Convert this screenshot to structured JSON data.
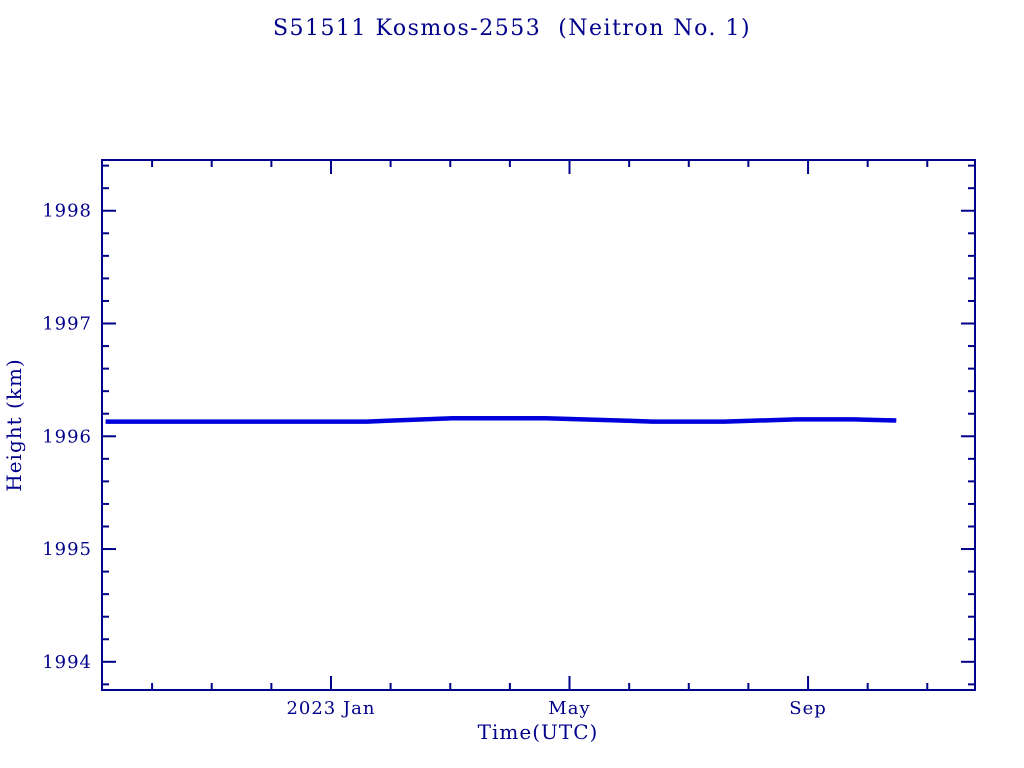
{
  "page": {
    "background": "#ffffff"
  },
  "colors": {
    "axis": "#00008b",
    "series": "#0000dd"
  },
  "chart_data": {
    "type": "line",
    "title": "S51511 Kosmos-2553  (Neitron No. 1)",
    "xlabel": "Time(UTC)",
    "ylabel": "Height (km)",
    "axis_color": "#00008b",
    "grid": false,
    "legend": false,
    "xlim": [
      2022.68,
      2023.9
    ],
    "ylim": [
      1993.75,
      1998.45
    ],
    "x_major_ticks": [
      {
        "x": 2023.0,
        "label": "2023 Jan"
      },
      {
        "x": 2023.3333,
        "label": "May"
      },
      {
        "x": 2023.6667,
        "label": "Sep"
      }
    ],
    "x_minor_ticks": [
      2022.75,
      2022.8333,
      2022.9167,
      2023.0833,
      2023.1667,
      2023.25,
      2023.4167,
      2023.5,
      2023.5833,
      2023.75,
      2023.8333
    ],
    "y_major_ticks": [
      {
        "y": 1994,
        "label": "1994"
      },
      {
        "y": 1995,
        "label": "1995"
      },
      {
        "y": 1996,
        "label": "1996"
      },
      {
        "y": 1997,
        "label": "1997"
      },
      {
        "y": 1998,
        "label": "1998"
      }
    ],
    "y_minor_step": 0.2,
    "series": [
      {
        "name": "orbit-height",
        "color": "#0000dd",
        "width": 4.5,
        "points": [
          [
            2022.685,
            1996.13
          ],
          [
            2022.9,
            1996.13
          ],
          [
            2023.05,
            1996.13
          ],
          [
            2023.17,
            1996.16
          ],
          [
            2023.3,
            1996.16
          ],
          [
            2023.45,
            1996.13
          ],
          [
            2023.55,
            1996.13
          ],
          [
            2023.65,
            1996.15
          ],
          [
            2023.73,
            1996.15
          ],
          [
            2023.79,
            1996.14
          ]
        ]
      }
    ]
  }
}
